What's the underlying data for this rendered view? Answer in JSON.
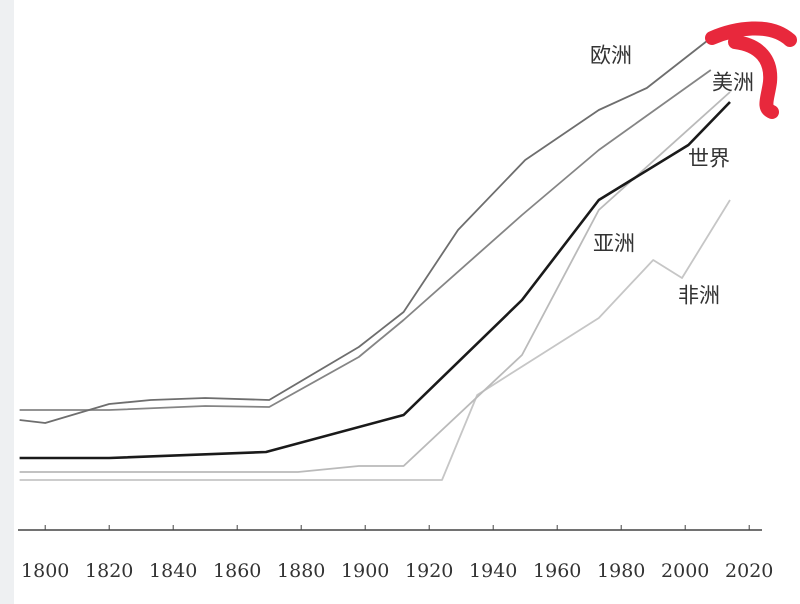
{
  "chart_data": {
    "type": "line",
    "xlim": [
      1791.5,
      2024
    ],
    "xticks": [
      1800,
      1820,
      1840,
      1860,
      1880,
      1900,
      1920,
      1940,
      1960,
      1980,
      2000,
      2020
    ],
    "ylim": [
      0,
      100
    ],
    "series": [
      {
        "name": "欧洲",
        "color": "#6e6e6e",
        "x": [
          1792,
          1800,
          1820,
          1833,
          1850,
          1870,
          1898,
          1912,
          1929,
          1950,
          1973,
          1988,
          2008
        ],
        "values": [
          22,
          21.4,
          25.2,
          26,
          26.4,
          26,
          36.6,
          43.6,
          60,
          74,
          84,
          88.4,
          98.4
        ]
      },
      {
        "name": "美洲",
        "color": "#858585",
        "x": [
          1792,
          1820,
          1850,
          1870,
          1898,
          1912,
          1949,
          1973,
          2008
        ],
        "values": [
          24,
          24,
          24.8,
          24.6,
          34.6,
          42,
          63,
          76,
          92
        ]
      },
      {
        "name": "世界",
        "color": "#1a1a1a",
        "x": [
          1792,
          1820,
          1869,
          1912,
          1949,
          1973,
          2001,
          2014
        ],
        "values": [
          14.4,
          14.4,
          15.6,
          23,
          46,
          66,
          77,
          85.6
        ]
      },
      {
        "name": "亚洲",
        "color": "#bababa",
        "x": [
          1792,
          1879,
          1898,
          1912,
          1949,
          1973,
          2014
        ],
        "values": [
          11.6,
          11.6,
          12.8,
          12.8,
          35,
          64,
          87.6
        ]
      },
      {
        "name": "非洲",
        "color": "#c6c6c6",
        "x": [
          1792,
          1924,
          1935,
          1973,
          1990,
          1999,
          2014
        ],
        "values": [
          10,
          10,
          27,
          42.4,
          54,
          50.4,
          66
        ]
      }
    ]
  }
}
